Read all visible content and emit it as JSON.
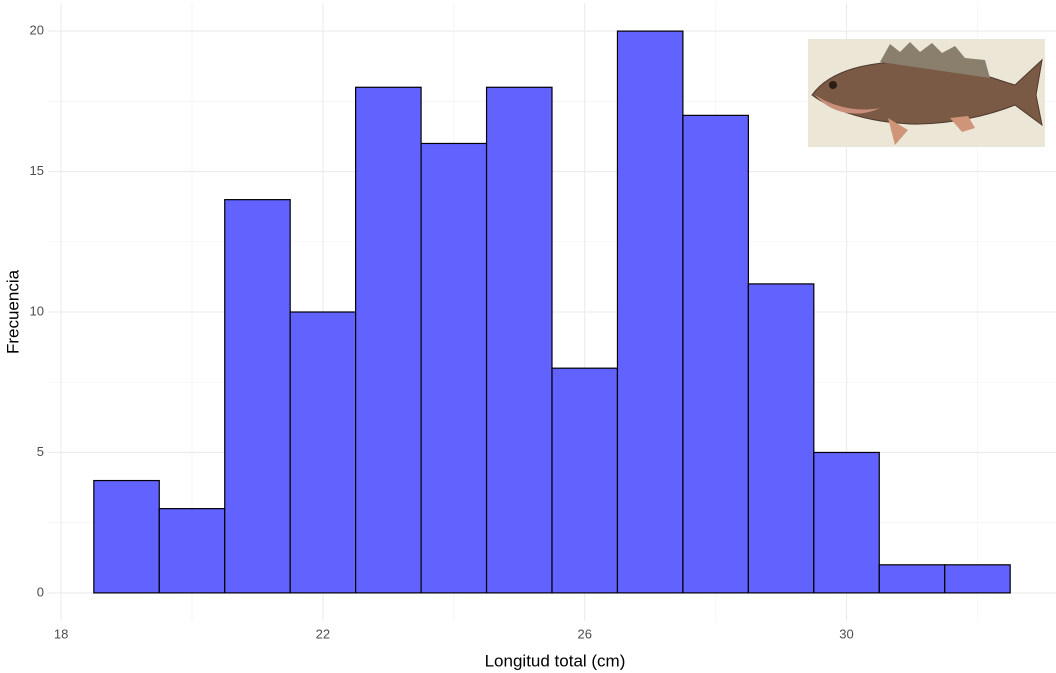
{
  "chart_data": {
    "type": "histogram",
    "x_label": "Longitud total (cm)",
    "y_label": "Frecuencia",
    "bins": [
      18.5,
      19.5,
      20.5,
      21.5,
      22.5,
      23.5,
      24.5,
      25.5,
      26.5,
      27.5,
      28.5,
      29.5,
      30.5,
      31.5,
      32.5
    ],
    "counts": [
      4,
      3,
      14,
      10,
      18,
      16,
      18,
      8,
      20,
      17,
      11,
      5,
      1,
      1
    ],
    "color": "#6262ff",
    "edge_color": "#000000",
    "xlim": [
      17.8,
      33.2
    ],
    "xticks": [
      18,
      22,
      26,
      30
    ],
    "xminor": [
      20,
      24,
      28,
      32
    ],
    "ylim": [
      -1,
      21
    ],
    "yticks": [
      0,
      5,
      10,
      15,
      20
    ],
    "yminor": [
      2.5,
      7.5,
      12.5,
      17.5
    ],
    "grid": true
  }
}
